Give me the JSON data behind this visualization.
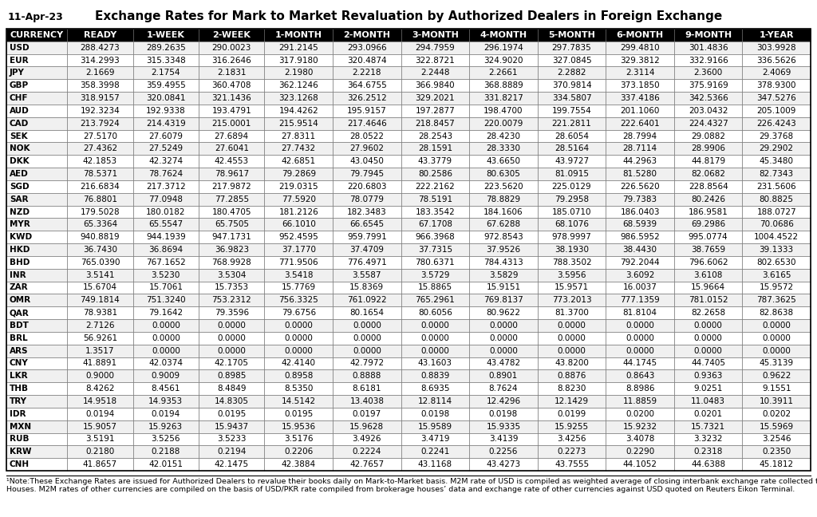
{
  "title": "Exchange Rates for Mark to Market Revaluation by Authorized Dealers in Foreign Exchange",
  "date": "11-Apr-23",
  "columns": [
    "CURRENCY",
    "READY",
    "1-WEEK",
    "2-WEEK",
    "1-MONTH",
    "2-MONTH",
    "3-MONTH",
    "4-MONTH",
    "5-MONTH",
    "6-MONTH",
    "9-MONTH",
    "1-YEAR"
  ],
  "rows": [
    [
      "USD",
      "288.4273",
      "289.2635",
      "290.0023",
      "291.2145",
      "293.0966",
      "294.7959",
      "296.1974",
      "297.7835",
      "299.4810",
      "301.4836",
      "303.9928"
    ],
    [
      "EUR",
      "314.2993",
      "315.3348",
      "316.2646",
      "317.9180",
      "320.4874",
      "322.8721",
      "324.9020",
      "327.0845",
      "329.3812",
      "332.9166",
      "336.5626"
    ],
    [
      "JPY",
      "2.1669",
      "2.1754",
      "2.1831",
      "2.1980",
      "2.2218",
      "2.2448",
      "2.2661",
      "2.2882",
      "2.3114",
      "2.3600",
      "2.4069"
    ],
    [
      "GBP",
      "358.3998",
      "359.4955",
      "360.4708",
      "362.1246",
      "364.6755",
      "366.9840",
      "368.8889",
      "370.9814",
      "373.1850",
      "375.9169",
      "378.9300"
    ],
    [
      "CHF",
      "318.9157",
      "320.0841",
      "321.1436",
      "323.1268",
      "326.2512",
      "329.2021",
      "331.8217",
      "334.5807",
      "337.4186",
      "342.5366",
      "347.5276"
    ],
    [
      "AUD",
      "192.3234",
      "192.9338",
      "193.4791",
      "194.4262",
      "195.9157",
      "197.2877",
      "198.4700",
      "199.7554",
      "201.1060",
      "203.0432",
      "205.1009"
    ],
    [
      "CAD",
      "213.7924",
      "214.4319",
      "215.0001",
      "215.9514",
      "217.4646",
      "218.8457",
      "220.0079",
      "221.2811",
      "222.6401",
      "224.4327",
      "226.4243"
    ],
    [
      "SEK",
      "27.5170",
      "27.6079",
      "27.6894",
      "27.8311",
      "28.0522",
      "28.2543",
      "28.4230",
      "28.6054",
      "28.7994",
      "29.0882",
      "29.3768"
    ],
    [
      "NOK",
      "27.4362",
      "27.5249",
      "27.6041",
      "27.7432",
      "27.9602",
      "28.1591",
      "28.3330",
      "28.5164",
      "28.7114",
      "28.9906",
      "29.2902"
    ],
    [
      "DKK",
      "42.1853",
      "42.3274",
      "42.4553",
      "42.6851",
      "43.0450",
      "43.3779",
      "43.6650",
      "43.9727",
      "44.2963",
      "44.8179",
      "45.3480"
    ],
    [
      "AED",
      "78.5371",
      "78.7624",
      "78.9617",
      "79.2869",
      "79.7945",
      "80.2586",
      "80.6305",
      "81.0915",
      "81.5280",
      "82.0682",
      "82.7343"
    ],
    [
      "SGD",
      "216.6834",
      "217.3712",
      "217.9872",
      "219.0315",
      "220.6803",
      "222.2162",
      "223.5620",
      "225.0129",
      "226.5620",
      "228.8564",
      "231.5606"
    ],
    [
      "SAR",
      "76.8801",
      "77.0948",
      "77.2855",
      "77.5920",
      "78.0779",
      "78.5191",
      "78.8829",
      "79.2958",
      "79.7383",
      "80.2426",
      "80.8825"
    ],
    [
      "NZD",
      "179.5028",
      "180.0182",
      "180.4705",
      "181.2126",
      "182.3483",
      "183.3542",
      "184.1606",
      "185.0710",
      "186.0403",
      "186.9581",
      "188.0727"
    ],
    [
      "MYR",
      "65.3364",
      "65.5547",
      "65.7505",
      "66.1010",
      "66.6545",
      "67.1708",
      "67.6288",
      "68.1076",
      "68.5939",
      "69.2986",
      "70.0686"
    ],
    [
      "KWD",
      "940.8819",
      "944.1939",
      "947.1731",
      "952.4595",
      "959.7991",
      "966.3968",
      "972.8543",
      "978.9997",
      "986.5952",
      "995.0774",
      "1004.4522"
    ],
    [
      "HKD",
      "36.7430",
      "36.8694",
      "36.9823",
      "37.1770",
      "37.4709",
      "37.7315",
      "37.9526",
      "38.1930",
      "38.4430",
      "38.7659",
      "39.1333"
    ],
    [
      "BHD",
      "765.0390",
      "767.1652",
      "768.9928",
      "771.9506",
      "776.4971",
      "780.6371",
      "784.4313",
      "788.3502",
      "792.2044",
      "796.6062",
      "802.6530"
    ],
    [
      "INR",
      "3.5141",
      "3.5230",
      "3.5304",
      "3.5418",
      "3.5587",
      "3.5729",
      "3.5829",
      "3.5956",
      "3.6092",
      "3.6108",
      "3.6165"
    ],
    [
      "ZAR",
      "15.6704",
      "15.7061",
      "15.7353",
      "15.7769",
      "15.8369",
      "15.8865",
      "15.9151",
      "15.9571",
      "16.0037",
      "15.9664",
      "15.9572"
    ],
    [
      "OMR",
      "749.1814",
      "751.3240",
      "753.2312",
      "756.3325",
      "761.0922",
      "765.2961",
      "769.8137",
      "773.2013",
      "777.1359",
      "781.0152",
      "787.3625"
    ],
    [
      "QAR",
      "78.9381",
      "79.1642",
      "79.3596",
      "79.6756",
      "80.1654",
      "80.6056",
      "80.9622",
      "81.3700",
      "81.8104",
      "82.2658",
      "82.8638"
    ],
    [
      "BDT",
      "2.7126",
      "0.0000",
      "0.0000",
      "0.0000",
      "0.0000",
      "0.0000",
      "0.0000",
      "0.0000",
      "0.0000",
      "0.0000",
      "0.0000"
    ],
    [
      "BRL",
      "56.9261",
      "0.0000",
      "0.0000",
      "0.0000",
      "0.0000",
      "0.0000",
      "0.0000",
      "0.0000",
      "0.0000",
      "0.0000",
      "0.0000"
    ],
    [
      "ARS",
      "1.3517",
      "0.0000",
      "0.0000",
      "0.0000",
      "0.0000",
      "0.0000",
      "0.0000",
      "0.0000",
      "0.0000",
      "0.0000",
      "0.0000"
    ],
    [
      "CNY",
      "41.8891",
      "42.0374",
      "42.1705",
      "42.4140",
      "42.7972",
      "43.1603",
      "43.4782",
      "43.8200",
      "44.1745",
      "44.7405",
      "45.3139"
    ],
    [
      "LKR",
      "0.9000",
      "0.9009",
      "0.8985",
      "0.8958",
      "0.8888",
      "0.8839",
      "0.8901",
      "0.8876",
      "0.8643",
      "0.9363",
      "0.9622"
    ],
    [
      "THB",
      "8.4262",
      "8.4561",
      "8.4849",
      "8.5350",
      "8.6181",
      "8.6935",
      "8.7624",
      "8.8230",
      "8.8986",
      "9.0251",
      "9.1551"
    ],
    [
      "TRY",
      "14.9518",
      "14.9353",
      "14.8305",
      "14.5142",
      "13.4038",
      "12.8114",
      "12.4296",
      "12.1429",
      "11.8859",
      "11.0483",
      "10.3911"
    ],
    [
      "IDR",
      "0.0194",
      "0.0194",
      "0.0195",
      "0.0195",
      "0.0197",
      "0.0198",
      "0.0198",
      "0.0199",
      "0.0200",
      "0.0201",
      "0.0202"
    ],
    [
      "MXN",
      "15.9057",
      "15.9263",
      "15.9437",
      "15.9536",
      "15.9628",
      "15.9589",
      "15.9335",
      "15.9255",
      "15.9232",
      "15.7321",
      "15.5969"
    ],
    [
      "RUB",
      "3.5191",
      "3.5256",
      "3.5233",
      "3.5176",
      "3.4926",
      "3.4719",
      "3.4139",
      "3.4256",
      "3.4078",
      "3.3232",
      "3.2546"
    ],
    [
      "KRW",
      "0.2180",
      "0.2188",
      "0.2194",
      "0.2206",
      "0.2224",
      "0.2241",
      "0.2256",
      "0.2273",
      "0.2290",
      "0.2318",
      "0.2350"
    ],
    [
      "CNH",
      "41.8657",
      "42.0151",
      "42.1475",
      "42.3884",
      "42.7657",
      "43.1168",
      "43.4273",
      "43.7555",
      "44.1052",
      "44.6388",
      "45.1812"
    ]
  ],
  "note_line1": "¹Note:These Exchange Rates are issued for Authorized Dealers to revalue their books daily on Mark-to-Market basis. M2M rate of USD is compiled as weighted average of closing interbank exchange rate collected through Brokerage",
  "note_line2": "Houses. M2M rates of other currencies are compiled on the basis of USD/PKR rate compiled from brokerage houses’ data and exchange rate of other currencies against USD quoted on Reuters Eikon Terminal.",
  "header_bg": "#000000",
  "header_fg": "#ffffff",
  "title_fontsize": 11,
  "header_fontsize": 8,
  "cell_fontsize": 7.5,
  "date_fontsize": 9,
  "note_fontsize": 6.8
}
